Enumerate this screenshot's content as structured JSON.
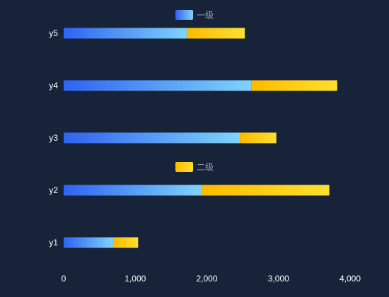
{
  "chart_data": {
    "type": "bar",
    "orientation": "horizontal",
    "stacked": true,
    "categories": [
      "y1",
      "y2",
      "y3",
      "y4",
      "y5"
    ],
    "series": [
      {
        "name": "一级",
        "values": [
          700,
          1920,
          2460,
          2620,
          1720
        ],
        "color_start": "#2f63f2",
        "color_end": "#7fd3fb"
      },
      {
        "name": "二级",
        "values": [
          340,
          1790,
          510,
          1200,
          810
        ],
        "color_start": "#ffbb00",
        "color_end": "#ffdf33"
      }
    ],
    "xlim": [
      0,
      4000
    ],
    "x_ticks": [
      "0",
      "1,000",
      "2,000",
      "3,000",
      "4,000"
    ],
    "x_tick_values": [
      0,
      1000,
      2000,
      3000,
      4000
    ],
    "grid": false,
    "legend_placement": "overlaid"
  },
  "colors": {
    "background": "#162339",
    "axis_text": "#ffffff",
    "legend_text": "#9aa4b6"
  }
}
